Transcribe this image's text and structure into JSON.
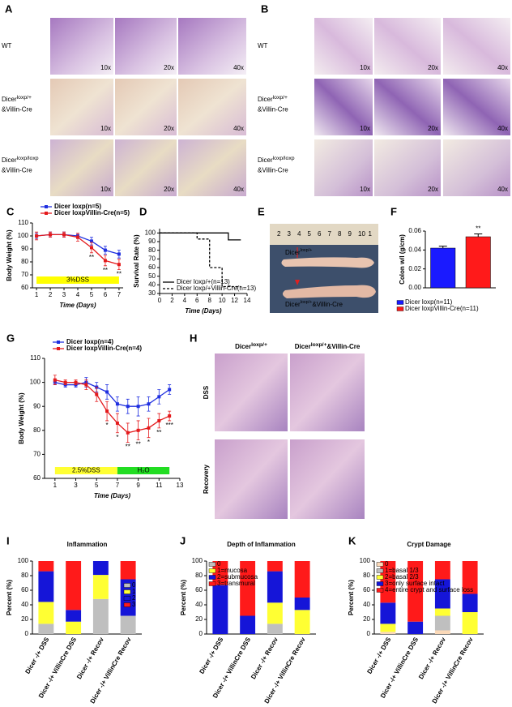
{
  "panel_A": {
    "label": "A",
    "rows": [
      {
        "name": "WT",
        "color": "#000000"
      },
      {
        "name": "Dicer",
        "sup": "loxp/+",
        "line2": "&Villin-Cre",
        "color": "#2e8b2e"
      },
      {
        "name": "Dicer",
        "sup": "loxp/loxp",
        "line2": "&Villin-Cre",
        "color": "#e02020"
      }
    ],
    "magnifications": [
      "10x",
      "20x",
      "40x"
    ]
  },
  "panel_B": {
    "label": "B",
    "rows": [
      {
        "name": "WT",
        "color": "#000000"
      },
      {
        "name": "Dicer",
        "sup": "loxp/+",
        "line2": "&Villin-Cre",
        "color": "#2e8b2e"
      },
      {
        "name": "Dicer",
        "sup": "loxp/loxp",
        "line2": "&Villin-Cre",
        "color": "#e02020"
      }
    ],
    "magnifications": [
      "10x",
      "20x",
      "40x"
    ]
  },
  "panel_E": {
    "label": "E",
    "ruler": [
      "2",
      "3",
      "4",
      "5",
      "6",
      "7",
      "8",
      "9",
      "10",
      "1"
    ],
    "top_label": {
      "name": "Dicer",
      "sup": "loxp/+"
    },
    "bottom_label": {
      "name": "Dicer",
      "sup": "loxp/+",
      "line2": "&Villin-Cre"
    }
  },
  "panel_H": {
    "label": "H",
    "columns": [
      {
        "name": "Dicer",
        "sup": "loxp/+"
      },
      {
        "name": "Dicer",
        "sup": "loxp/+",
        "line2": "&Villin-Cre"
      }
    ],
    "rows": [
      "DSS",
      "Recovery"
    ]
  },
  "chart_data": [
    {
      "label": "C",
      "type": "line",
      "xlabel": "Time (Days)",
      "ylabel": "Body Weight (%)",
      "x": [
        1,
        2,
        3,
        4,
        5,
        6,
        7
      ],
      "xlim": [
        0.7,
        7.3
      ],
      "xticks": [
        1,
        2,
        3,
        4,
        5,
        6,
        7
      ],
      "ylim": [
        60,
        110
      ],
      "yticks": [
        60,
        70,
        80,
        90,
        100,
        110
      ],
      "legend": "top",
      "treatments": [
        {
          "text": "3%DSS",
          "color": "#ffff00",
          "x": [
            1,
            7
          ]
        }
      ],
      "series": [
        {
          "name": "Dicer loxp(n=5)",
          "color": "#1f2fe0",
          "values": [
            100,
            101,
            101,
            100,
            96,
            89,
            86
          ],
          "errors": [
            2,
            2,
            2,
            2,
            3,
            3,
            3
          ]
        },
        {
          "name": "Dicer loxpVillin-Cre(n=5)",
          "color": "#e41a1c",
          "values": [
            100,
            101,
            101,
            99,
            91,
            81,
            78
          ],
          "errors": [
            3,
            2,
            2,
            3,
            4,
            4,
            4
          ],
          "annotations": [
            null,
            null,
            null,
            null,
            "**",
            "**",
            "**"
          ]
        }
      ]
    },
    {
      "label": "D",
      "type": "line",
      "xlabel": "Time (Days)",
      "ylabel": "Survival Rate (%)",
      "xlim": [
        0,
        14
      ],
      "xticks": [
        0,
        2,
        4,
        6,
        8,
        10,
        12,
        14
      ],
      "ylim": [
        30,
        105
      ],
      "yticks": [
        30,
        40,
        50,
        60,
        70,
        80,
        90,
        100
      ],
      "legend": "lower left",
      "series": [
        {
          "name": "Dicer loxp/+(n=13)",
          "color": "#000000",
          "x": [
            0,
            11,
            11,
            13
          ],
          "values": [
            100,
            100,
            92,
            92
          ]
        },
        {
          "name": "Dicer loxp/+Villin-Cre(n=13)",
          "color": "#000000",
          "dash": true,
          "x": [
            0,
            6,
            6,
            8,
            8,
            10,
            10,
            13
          ],
          "values": [
            100,
            100,
            93,
            93,
            60,
            60,
            38,
            38
          ]
        }
      ]
    },
    {
      "label": "F",
      "type": "bar",
      "ylabel": "Colon w/l (g/cm)",
      "ylim": [
        0,
        0.06
      ],
      "yticks": [
        {
          "value": 0,
          "label": "0.00"
        },
        0.02,
        0.04,
        0.06
      ],
      "legend": "bottom",
      "series": [
        {
          "name": "Dicer loxp(n=11)",
          "color": "#1a1aff",
          "values": [
            0.042
          ],
          "errors": [
            0.002
          ]
        },
        {
          "name": "Dicer loxpVillin-Cre(n=11)",
          "color": "#ff1a1a",
          "values": [
            0.054
          ],
          "errors": [
            0.003
          ],
          "annotations": [
            "**"
          ]
        }
      ]
    },
    {
      "label": "G",
      "type": "line",
      "xlabel": "Time (Days)",
      "ylabel": "Body Weight (%)",
      "x": [
        1,
        2,
        3,
        4,
        5,
        6,
        7,
        8,
        9,
        10,
        11,
        12
      ],
      "xlim": [
        0,
        13
      ],
      "xticks": [
        1,
        3,
        5,
        7,
        9,
        11,
        13
      ],
      "ylim": [
        60,
        110
      ],
      "yticks": [
        60,
        70,
        80,
        90,
        100,
        110
      ],
      "legend": "top",
      "treatments": [
        {
          "text": "2.5%DSS",
          "color": "#ffff33",
          "x": [
            1,
            7
          ]
        },
        {
          "text": "H₂O",
          "color": "#22dd22",
          "x": [
            7,
            12
          ]
        }
      ],
      "series": [
        {
          "name": "Dicer loxp(n=4)",
          "color": "#1f2fe0",
          "values": [
            100,
            99,
            99,
            100,
            98,
            96,
            91,
            90,
            90,
            91,
            94,
            97
          ],
          "errors": [
            1,
            1,
            1,
            2,
            2,
            3,
            3,
            3,
            4,
            3,
            3,
            2
          ]
        },
        {
          "name": "Dicer loxpVillin-Cre(n=4)",
          "color": "#e41a1c",
          "values": [
            101,
            100,
            100,
            99,
            95,
            88,
            83,
            79,
            80,
            81,
            84,
            86
          ],
          "errors": [
            2,
            1,
            1,
            2,
            3,
            4,
            4,
            4,
            4,
            4,
            3,
            2
          ],
          "annotations": [
            null,
            null,
            null,
            null,
            null,
            "*",
            "*",
            "**",
            "**",
            "*",
            "**",
            "***"
          ]
        }
      ]
    },
    {
      "label": "I",
      "type": "stacked_bar",
      "title": "Inflammation",
      "ylabel": "Percent (%)",
      "categories": [
        "Dicer -/+ DSS",
        "Dicer -/+ VillinCre DSS",
        "Dicer -/+ Recov",
        "Dicer -/+ VillinCre Recov"
      ],
      "ylim": [
        0,
        100
      ],
      "yticks": [
        0,
        20,
        40,
        60,
        80,
        100
      ],
      "legend": "right",
      "series": [
        {
          "name": "0",
          "color": "#bfbfbf",
          "values": [
            14,
            0,
            48,
            25
          ]
        },
        {
          "name": "1",
          "color": "#ffff33",
          "values": [
            30,
            17,
            33,
            0
          ]
        },
        {
          "name": "2",
          "color": "#1515d8",
          "values": [
            42,
            16,
            19,
            50
          ]
        },
        {
          "name": "3",
          "color": "#ff1a1a",
          "values": [
            14,
            67,
            0,
            25
          ]
        }
      ]
    },
    {
      "label": "J",
      "type": "stacked_bar",
      "title": "Depth of Inflammation",
      "ylabel": "Percent (%)",
      "categories": [
        "Dicer -/+ DSS",
        "Dicer -/+ VillinCre DSS",
        "Dicer -/+ Recov",
        "Dicer -/+ VillinCre Recov"
      ],
      "ylim": [
        0,
        100
      ],
      "yticks": [
        0,
        20,
        40,
        60,
        80,
        100
      ],
      "legend": "upper left",
      "series": [
        {
          "name": "0",
          "color": "#bfbfbf",
          "values": [
            0,
            0,
            14,
            0
          ]
        },
        {
          "name": "1=mucosa",
          "color": "#ffff33",
          "values": [
            0,
            0,
            29,
            33
          ]
        },
        {
          "name": "2=submucosa",
          "color": "#1515d8",
          "values": [
            67,
            25,
            43,
            17
          ]
        },
        {
          "name": "3=transmural",
          "color": "#ff1a1a",
          "values": [
            33,
            75,
            14,
            50
          ]
        }
      ]
    },
    {
      "label": "K",
      "type": "stacked_bar",
      "title": "Crypt Damage",
      "ylabel": "Percent (%)",
      "categories": [
        "Dicer -/+ DSS",
        "Dicer -/+ VillinCre DSS",
        "Dicer -/+ Recov",
        "Dicer -/+ VillinCre Recov"
      ],
      "ylim": [
        0,
        100
      ],
      "yticks": [
        0,
        20,
        40,
        60,
        80,
        100
      ],
      "legend": "upper left",
      "series": [
        {
          "name": "0",
          "color": "#fbd9b8",
          "values": [
            3,
            0,
            5,
            0
          ]
        },
        {
          "name": "1=basal 1/3",
          "color": "#bfbfbf",
          "values": [
            0,
            0,
            20,
            0
          ]
        },
        {
          "name": "2=basal 2/3",
          "color": "#ffff33",
          "values": [
            11,
            0,
            10,
            30
          ]
        },
        {
          "name": "3=only surface intact",
          "color": "#1515d8",
          "values": [
            29,
            17,
            40,
            25
          ]
        },
        {
          "name": "4=entire crypt and surface loss",
          "color": "#ff1a1a",
          "values": [
            57,
            83,
            25,
            45
          ]
        }
      ]
    }
  ]
}
